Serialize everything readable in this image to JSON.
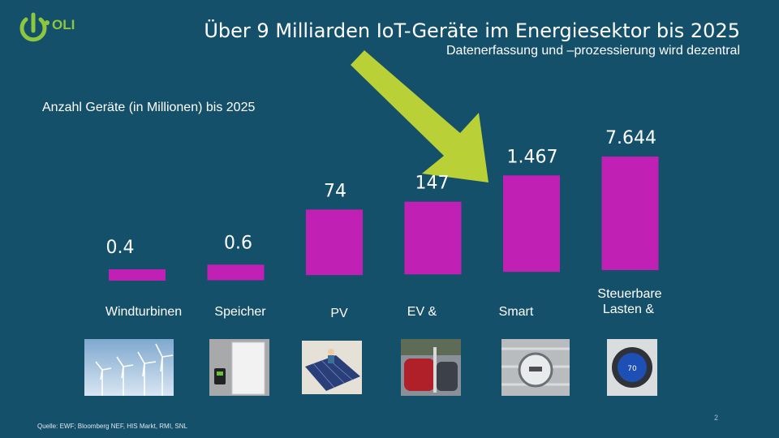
{
  "header": {
    "logo_text": "OLI",
    "title": "Über 9 Milliarden IoT-Geräte im Energiesektor bis 2025",
    "subtitle": "Datenerfassung und –prozessierung wird dezentral"
  },
  "colors": {
    "background": "#15506a",
    "bar": "#c020b4",
    "arrow": "#b9d136",
    "logo": "#8dc63f"
  },
  "chart_data": {
    "type": "bar",
    "ylabel": "Anzahl Geräte (in Millionen) bis 2025",
    "categories": [
      "Windturbinen",
      "Speicher",
      "PV",
      "EV &",
      "Smart",
      "Steuerbare Lasten &"
    ],
    "values": [
      0.4,
      0.6,
      74,
      147,
      1467,
      7644
    ],
    "value_labels": [
      "0.4",
      "0.6",
      "74",
      "147",
      "1.467",
      "7.644"
    ],
    "scale": "log",
    "grid": false,
    "legend": "none"
  },
  "photos": [
    "wind-turbines-photo",
    "battery-storage-photo",
    "solar-panels-photo",
    "electric-car-photo",
    "smart-meter-photo",
    "smart-thermostat-photo"
  ],
  "footer": {
    "source": "Quelle: EWF; Bloomberg NEF, HIS Markt, RMI, SNL",
    "page": "2"
  }
}
